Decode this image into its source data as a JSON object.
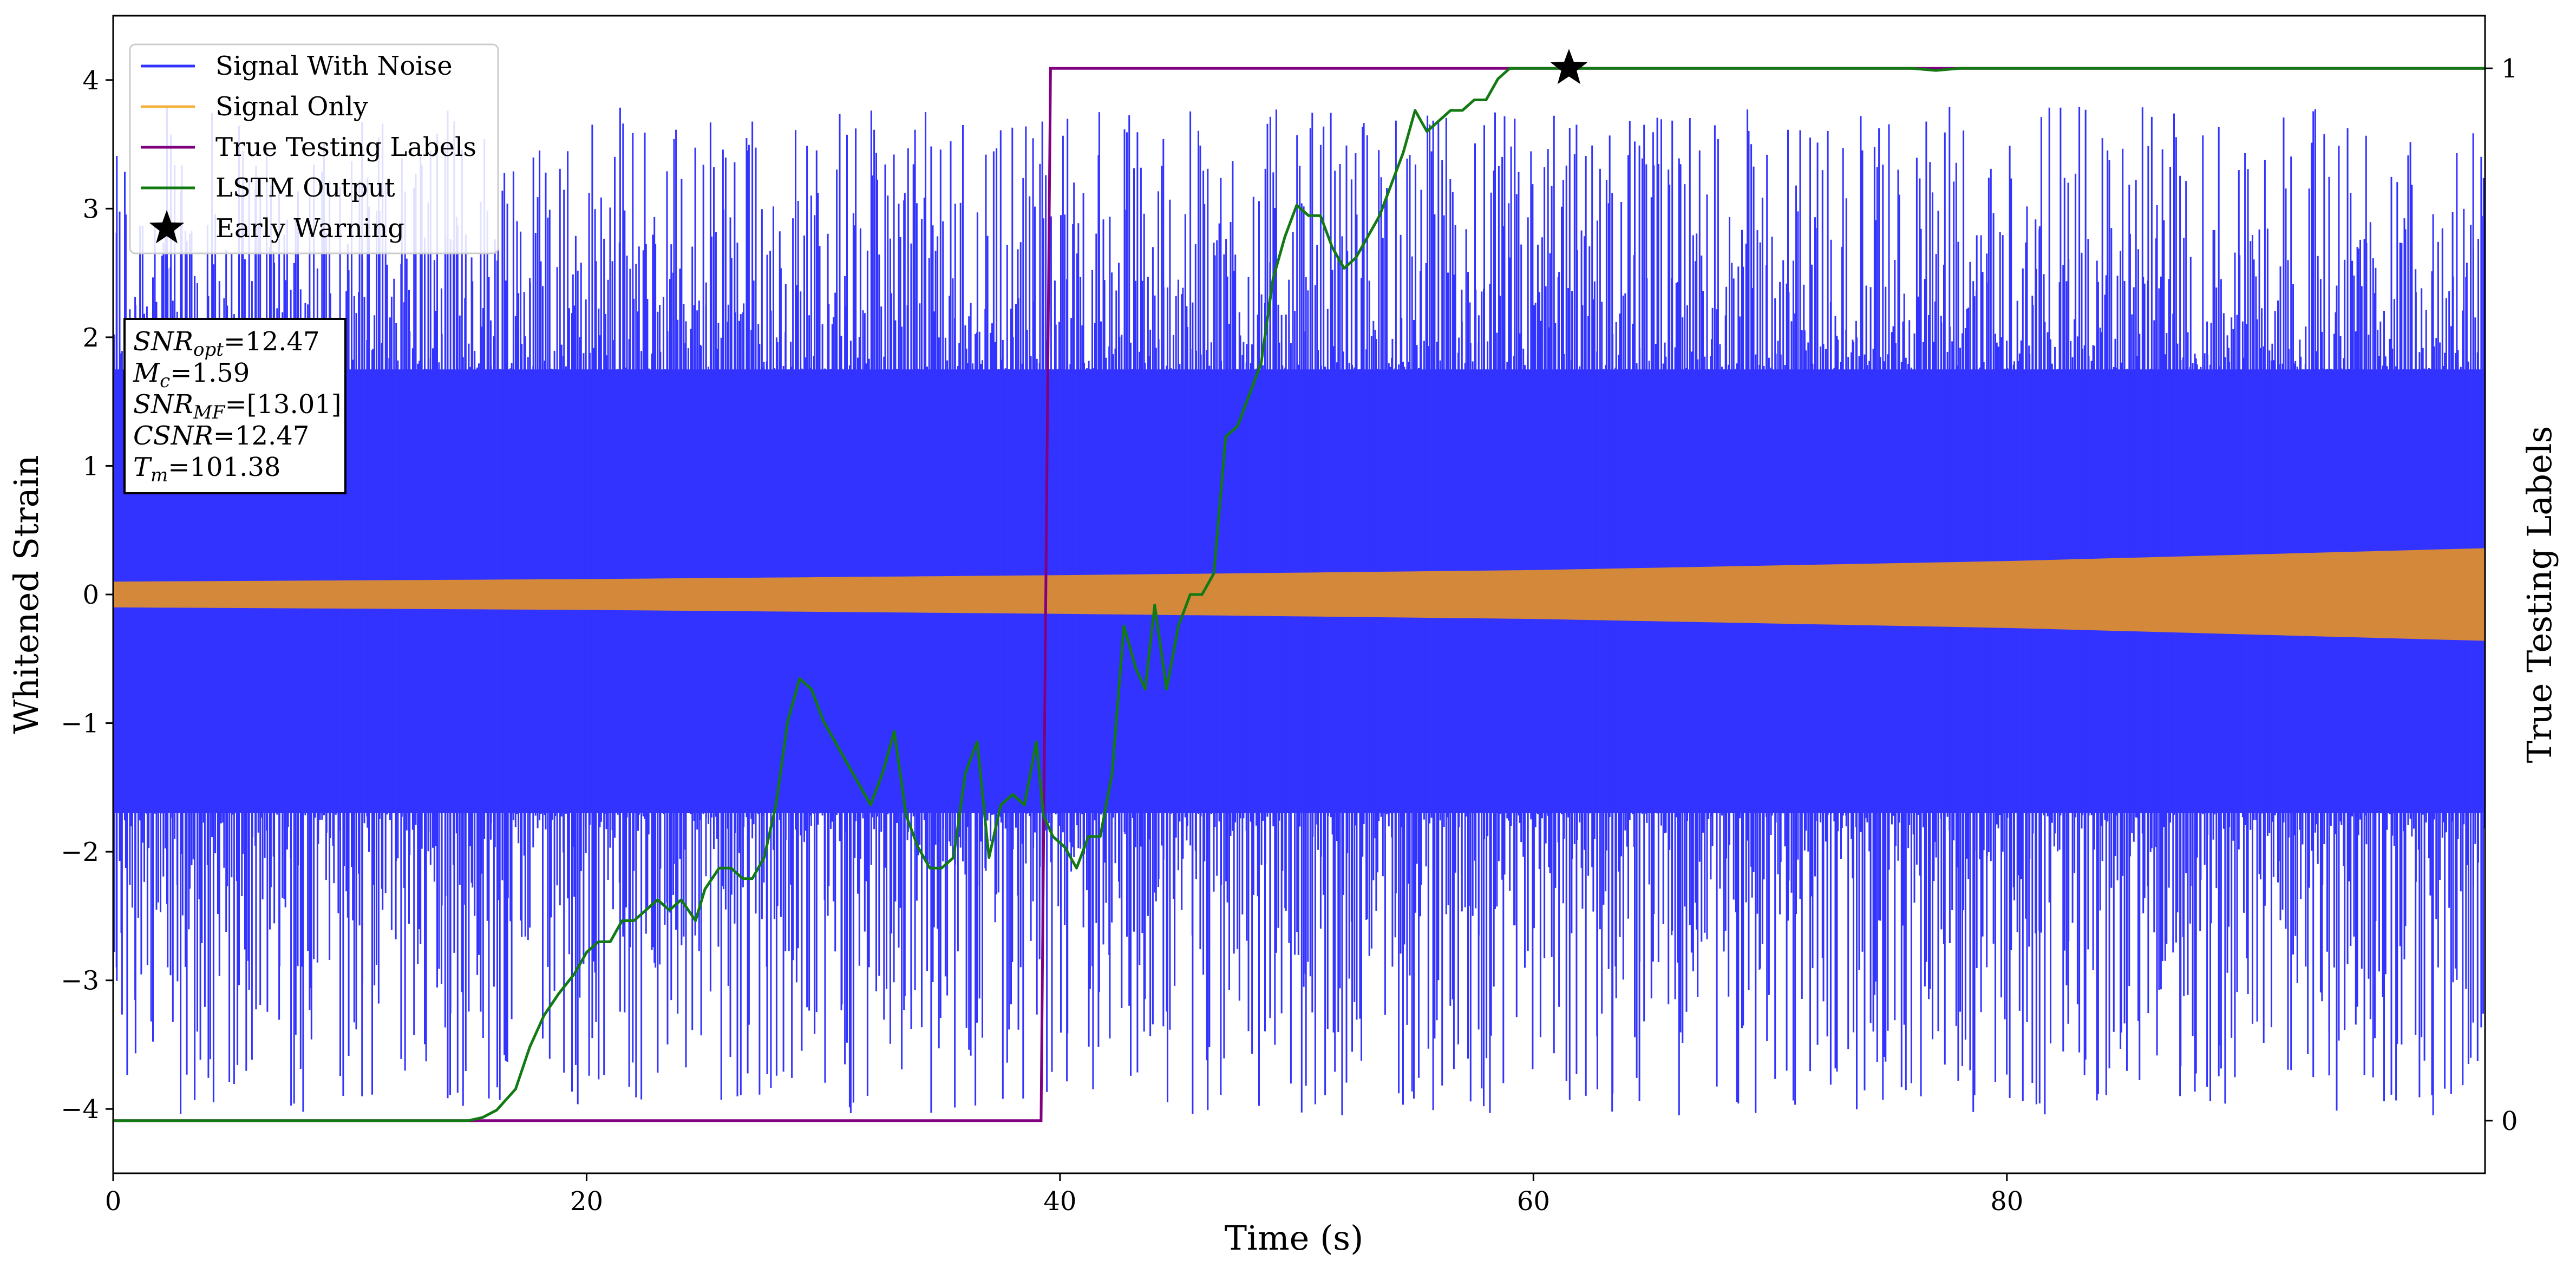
{
  "chart_data": {
    "type": "line",
    "xlabel": "Time (s)",
    "ylabel": "Whitened Strain",
    "ylabel_right": "True Testing Labels",
    "xlim": [
      0,
      100.2
    ],
    "ylim": [
      -4.5,
      4.5
    ],
    "ylim_right": [
      -0.05,
      1.05
    ],
    "x_ticks": [
      0,
      20,
      40,
      60,
      80
    ],
    "x_tick_labels": [
      "0",
      "20",
      "40",
      "60",
      "80"
    ],
    "y_ticks": [
      -4,
      -3,
      -2,
      -1,
      0,
      1,
      2,
      3,
      4
    ],
    "y_tick_labels": [
      "−4",
      "−3",
      "−2",
      "−1",
      "0",
      "1",
      "2",
      "3",
      "4"
    ],
    "y_right_ticks": [
      0,
      1
    ],
    "y_right_tick_labels": [
      "0",
      "1"
    ],
    "grid": false,
    "legend_position": "top-left",
    "series": [
      {
        "name": "Signal With Noise",
        "axis": "left",
        "color": "#3333ff",
        "style": "dense-noise",
        "band_low": -1.7,
        "band_high": 1.75,
        "spike_min": -4.05,
        "spike_max": 3.8
      },
      {
        "name": "Signal Only",
        "axis": "left",
        "color": "#d4893a",
        "legend_color": "#f5b342",
        "style": "chirp-envelope",
        "x": [
          0,
          20,
          40,
          60,
          80,
          100.2
        ],
        "amplitude": [
          0.1,
          0.12,
          0.15,
          0.19,
          0.26,
          0.36
        ]
      },
      {
        "name": "True Testing Labels",
        "axis": "right",
        "color": "#800080",
        "style": "line",
        "x": [
          0,
          39.2,
          39.6,
          100.2
        ],
        "y": [
          0,
          0,
          1,
          1
        ]
      },
      {
        "name": "LSTM Output",
        "axis": "right",
        "color": "#137a13",
        "style": "line",
        "x": [
          0,
          15,
          15.6,
          16.2,
          17,
          17.6,
          18.2,
          18.8,
          19.5,
          20,
          20.5,
          21,
          21.5,
          22,
          22.5,
          23,
          23.5,
          24,
          24.6,
          25,
          25.6,
          26.1,
          26.6,
          27,
          27.5,
          28,
          28.5,
          29,
          29.5,
          30,
          30.5,
          31,
          31.5,
          32,
          32.5,
          33,
          33.5,
          34,
          34.5,
          35,
          35.5,
          36,
          36.5,
          37,
          37.5,
          38,
          38.5,
          39,
          39.3,
          39.7,
          40.2,
          40.7,
          41.2,
          41.7,
          42.2,
          42.7,
          43.2,
          43.6,
          44,
          44.5,
          45,
          45.5,
          46,
          46.5,
          47,
          47.5,
          48,
          48.5,
          49,
          49.5,
          50,
          50.5,
          51,
          51.5,
          52,
          52.5,
          53,
          53.5,
          54,
          54.5,
          55,
          55.5,
          56,
          56.5,
          57,
          57.5,
          58,
          58.5,
          59,
          59.5,
          60,
          60.5,
          61,
          61.5,
          62,
          65,
          70,
          75,
          76,
          77,
          78,
          80,
          90,
          100.2
        ],
        "y": [
          0,
          0,
          0.003,
          0.01,
          0.03,
          0.07,
          0.1,
          0.12,
          0.14,
          0.16,
          0.17,
          0.17,
          0.19,
          0.19,
          0.2,
          0.21,
          0.2,
          0.21,
          0.19,
          0.22,
          0.24,
          0.24,
          0.23,
          0.23,
          0.25,
          0.3,
          0.38,
          0.42,
          0.41,
          0.38,
          0.36,
          0.34,
          0.32,
          0.3,
          0.33,
          0.37,
          0.29,
          0.26,
          0.24,
          0.24,
          0.25,
          0.33,
          0.36,
          0.25,
          0.3,
          0.31,
          0.3,
          0.36,
          0.29,
          0.27,
          0.26,
          0.24,
          0.27,
          0.27,
          0.33,
          0.47,
          0.43,
          0.41,
          0.49,
          0.41,
          0.47,
          0.5,
          0.5,
          0.52,
          0.65,
          0.66,
          0.69,
          0.72,
          0.8,
          0.84,
          0.87,
          0.86,
          0.86,
          0.83,
          0.81,
          0.82,
          0.84,
          0.86,
          0.89,
          0.92,
          0.96,
          0.94,
          0.95,
          0.96,
          0.96,
          0.97,
          0.97,
          0.99,
          1,
          1,
          1,
          1,
          1,
          1,
          1,
          1,
          1,
          1,
          1,
          0.998,
          1,
          1,
          1,
          1
        ]
      },
      {
        "name": "Early Warning",
        "axis": "right",
        "color": "#000000",
        "style": "star-marker",
        "x": [
          61.5
        ],
        "y": [
          1
        ]
      }
    ],
    "annotation": {
      "lines": [
        {
          "sym": "SNR",
          "sub": "opt",
          "val": "=12.47"
        },
        {
          "sym": "M",
          "sub": "c",
          "val": "=1.59"
        },
        {
          "sym": "SNR",
          "sub": "MF",
          "val": "=[13.01]"
        },
        {
          "sym": "CSNR",
          "sub": "",
          "val": "=12.47"
        },
        {
          "sym": "T",
          "sub": "m",
          "val": "=101.38"
        }
      ]
    }
  }
}
